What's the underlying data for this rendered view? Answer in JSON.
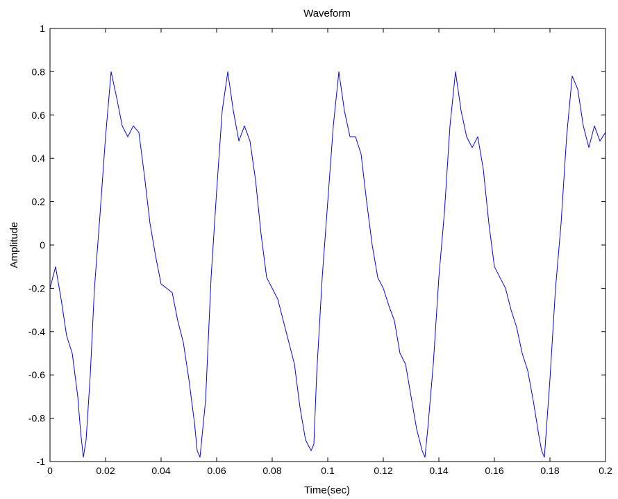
{
  "chart_data": {
    "type": "line",
    "title": "Waveform",
    "xlabel": "Time(sec)",
    "ylabel": "Amplitude",
    "xlim": [
      0,
      0.2
    ],
    "ylim": [
      -1,
      1
    ],
    "xticks": [
      0,
      0.02,
      0.04,
      0.06,
      0.08,
      0.1,
      0.12,
      0.14,
      0.16,
      0.18,
      0.2
    ],
    "xtick_labels": [
      "0",
      "0.02",
      "0.04",
      "0.06",
      "0.08",
      "0.1",
      "0.12",
      "0.14",
      "0.16",
      "0.18",
      "0.2"
    ],
    "yticks": [
      -1,
      -0.8,
      -0.6,
      -0.4,
      -0.2,
      0,
      0.2,
      0.4,
      0.6,
      0.8,
      1
    ],
    "ytick_labels": [
      "-1",
      "-0.8",
      "-0.6",
      "-0.4",
      "-0.2",
      "0",
      "0.2",
      "0.4",
      "0.6",
      "0.8",
      "1"
    ],
    "grid": false,
    "box": true,
    "series": [
      {
        "color": "#0000ff",
        "x": [
          0,
          0.002,
          0.004,
          0.006,
          0.008,
          0.01,
          0.011,
          0.012,
          0.013,
          0.0145,
          0.016,
          0.018,
          0.02,
          0.022,
          0.024,
          0.026,
          0.028,
          0.03,
          0.032,
          0.034,
          0.036,
          0.038,
          0.04,
          0.042,
          0.044,
          0.046,
          0.048,
          0.05,
          0.052,
          0.053,
          0.054,
          0.056,
          0.058,
          0.06,
          0.062,
          0.064,
          0.066,
          0.068,
          0.07,
          0.072,
          0.074,
          0.076,
          0.078,
          0.08,
          0.082,
          0.084,
          0.086,
          0.088,
          0.09,
          0.092,
          0.094,
          0.095,
          0.096,
          0.098,
          0.1,
          0.102,
          0.104,
          0.106,
          0.108,
          0.11,
          0.112,
          0.114,
          0.116,
          0.118,
          0.12,
          0.122,
          0.124,
          0.126,
          0.128,
          0.13,
          0.132,
          0.134,
          0.135,
          0.136,
          0.138,
          0.14,
          0.142,
          0.144,
          0.146,
          0.148,
          0.15,
          0.152,
          0.154,
          0.156,
          0.158,
          0.16,
          0.162,
          0.164,
          0.166,
          0.168,
          0.17,
          0.172,
          0.174,
          0.176,
          0.177,
          0.178,
          0.18,
          0.182,
          0.184,
          0.186,
          0.188,
          0.19,
          0.192,
          0.194,
          0.196,
          0.198,
          0.2
        ],
        "y": [
          -0.2,
          -0.1,
          -0.25,
          -0.42,
          -0.5,
          -0.7,
          -0.86,
          -0.98,
          -0.9,
          -0.6,
          -0.2,
          0.14,
          0.5,
          0.8,
          0.68,
          0.55,
          0.5,
          0.55,
          0.52,
          0.32,
          0.1,
          -0.05,
          -0.18,
          -0.2,
          -0.22,
          -0.35,
          -0.45,
          -0.62,
          -0.82,
          -0.95,
          -0.98,
          -0.72,
          -0.15,
          0.25,
          0.62,
          0.8,
          0.62,
          0.48,
          0.55,
          0.48,
          0.3,
          0.05,
          -0.15,
          -0.2,
          -0.25,
          -0.35,
          -0.45,
          -0.55,
          -0.75,
          -0.9,
          -0.95,
          -0.92,
          -0.6,
          -0.15,
          0.2,
          0.55,
          0.8,
          0.62,
          0.5,
          0.5,
          0.42,
          0.2,
          0.0,
          -0.15,
          -0.2,
          -0.28,
          -0.35,
          -0.5,
          -0.55,
          -0.7,
          -0.85,
          -0.95,
          -0.98,
          -0.85,
          -0.55,
          -0.15,
          0.15,
          0.55,
          0.8,
          0.62,
          0.5,
          0.45,
          0.5,
          0.35,
          0.1,
          -0.1,
          -0.15,
          -0.2,
          -0.3,
          -0.38,
          -0.5,
          -0.58,
          -0.72,
          -0.88,
          -0.95,
          -0.98,
          -0.62,
          -0.2,
          0.1,
          0.5,
          0.78,
          0.72,
          0.55,
          0.45,
          0.55,
          0.48,
          0.52
        ]
      }
    ]
  }
}
